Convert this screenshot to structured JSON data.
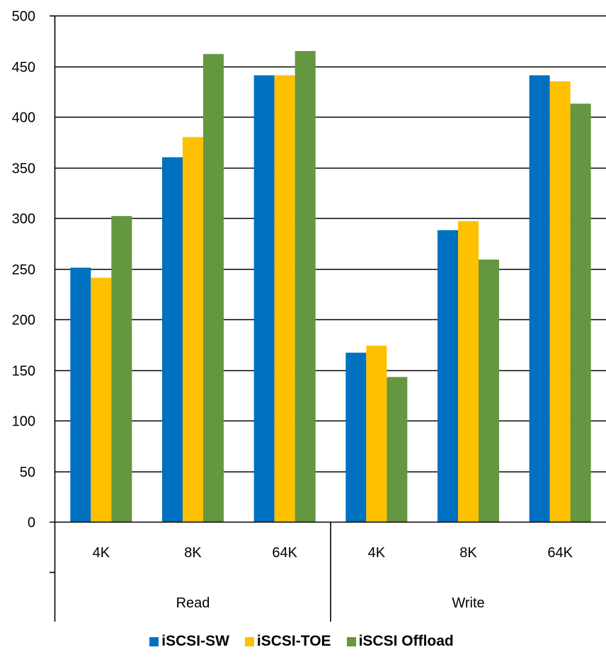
{
  "chart_data": {
    "type": "bar",
    "title": "",
    "xlabel": "",
    "ylabel": "",
    "ylim": [
      0,
      500
    ],
    "yticks": [
      0,
      50,
      100,
      150,
      200,
      250,
      300,
      350,
      400,
      450,
      500
    ],
    "grid": true,
    "legend_position": "bottom",
    "groups": [
      {
        "label": "Read",
        "categories": [
          "4K",
          "8K",
          "64K"
        ]
      },
      {
        "label": "Write",
        "categories": [
          "4K",
          "8K",
          "64K"
        ]
      }
    ],
    "categories": [
      "4K",
      "8K",
      "64K",
      "4K",
      "8K",
      "64K"
    ],
    "series": [
      {
        "name": "iSCSI-SW",
        "color": "#0070C0",
        "values": [
          251,
          360,
          441,
          167,
          288,
          441
        ]
      },
      {
        "name": "iSCSI-TOE",
        "color": "#FFC000",
        "values": [
          241,
          380,
          441,
          174,
          297,
          435
        ]
      },
      {
        "name": "iSCSI Offload",
        "color": "#659640",
        "values": [
          302,
          462,
          465,
          143,
          259,
          413
        ]
      }
    ]
  }
}
